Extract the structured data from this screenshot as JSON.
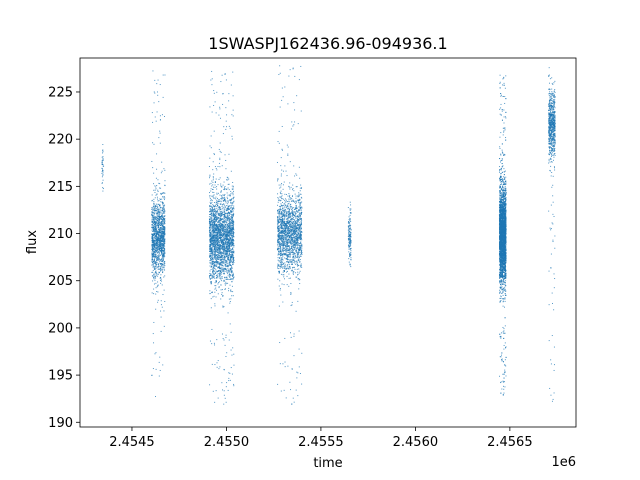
{
  "chart_data": {
    "type": "scatter",
    "title": "1SWASPJ162436.96-094936.1",
    "xlabel": "time",
    "ylabel": "flux",
    "x_offset_label": "1e6",
    "xlim": [
      2454225,
      2456850
    ],
    "ylim": [
      189.5,
      228.6
    ],
    "x_ticks": [
      2454500,
      2455000,
      2455500,
      2456000,
      2456500
    ],
    "x_tick_labels": [
      "2.4545",
      "2.4550",
      "2.4555",
      "2.4560",
      "2.4565"
    ],
    "y_ticks": [
      190,
      195,
      200,
      205,
      210,
      215,
      220,
      225
    ],
    "y_tick_labels": [
      "190",
      "195",
      "200",
      "205",
      "210",
      "215",
      "220",
      "225"
    ],
    "grid": false,
    "legend": "none",
    "marker_color": "#1f77b4",
    "series": [
      {
        "clusters": [
          {
            "x_start": 2454340,
            "x_end": 2454350,
            "y_center": 217,
            "y_spread": 1.2,
            "y_min": 214.5,
            "y_max": 219.5,
            "approx_points": 40
          },
          {
            "x_start": 2454605,
            "x_end": 2454675,
            "y_center": 209.5,
            "y_spread": 2.0,
            "y_min": 192,
            "y_max": 227.3,
            "approx_points": 1400
          },
          {
            "x_start": 2454910,
            "x_end": 2455040,
            "y_center": 209.5,
            "y_spread": 2.3,
            "y_min": 191.5,
            "y_max": 227.2,
            "approx_points": 2600
          },
          {
            "x_start": 2455270,
            "x_end": 2455400,
            "y_center": 210.0,
            "y_spread": 2.0,
            "y_min": 191.5,
            "y_max": 227.8,
            "approx_points": 1800
          },
          {
            "x_start": 2455645,
            "x_end": 2455660,
            "y_center": 209.5,
            "y_spread": 1.2,
            "y_min": 206.5,
            "y_max": 213.5,
            "approx_points": 150
          },
          {
            "x_start": 2456445,
            "x_end": 2456480,
            "y_center": 209.8,
            "y_spread": 2.4,
            "y_min": 192.5,
            "y_max": 226.8,
            "approx_points": 3500
          },
          {
            "x_start": 2456705,
            "x_end": 2456740,
            "y_center": 221.5,
            "y_spread": 1.8,
            "y_min": 191.8,
            "y_max": 227.6,
            "approx_points": 700
          }
        ]
      }
    ]
  }
}
